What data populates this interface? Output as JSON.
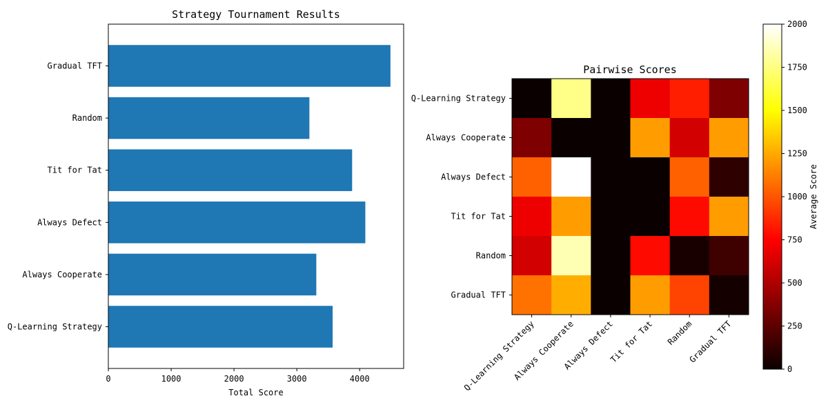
{
  "chart_data": [
    {
      "type": "bar",
      "orientation": "horizontal",
      "title": "Strategy Tournament Results",
      "xlabel": "Total Score",
      "ylabel": "",
      "categories": [
        "Q-Learning Strategy",
        "Always Cooperate",
        "Always Defect",
        "Tit for Tat",
        "Random",
        "Gradual TFT"
      ],
      "values": [
        3570,
        3310,
        4090,
        3880,
        3200,
        4490
      ],
      "xlim": [
        0,
        4700
      ],
      "xticks": [
        0,
        1000,
        2000,
        3000,
        4000
      ],
      "bar_color": "#1f77b4",
      "grid": false
    },
    {
      "type": "heatmap",
      "title": "Pairwise Scores",
      "row_labels": [
        "Q-Learning Strategy",
        "Always Cooperate",
        "Always Defect",
        "Tit for Tat",
        "Random",
        "Gradual TFT"
      ],
      "col_labels": [
        "Q-Learning Strategy",
        "Always Cooperate",
        "Always Defect",
        "Tit for Tat",
        "Random",
        "Gradual TFT"
      ],
      "values": [
        [
          0,
          1760,
          0,
          650,
          820,
          330
        ],
        [
          330,
          0,
          0,
          1200,
          570,
          1200
        ],
        [
          1020,
          2000,
          0,
          0,
          1020,
          100
        ],
        [
          650,
          1200,
          0,
          0,
          760,
          1200
        ],
        [
          570,
          1850,
          0,
          760,
          40,
          150
        ],
        [
          1070,
          1250,
          0,
          1200,
          930,
          30
        ]
      ],
      "colormap": "hot",
      "colorbar": {
        "label": "Average Score",
        "min": 0,
        "max": 2000,
        "ticks": [
          0,
          250,
          500,
          750,
          1000,
          1250,
          1500,
          1750,
          2000
        ]
      }
    }
  ]
}
